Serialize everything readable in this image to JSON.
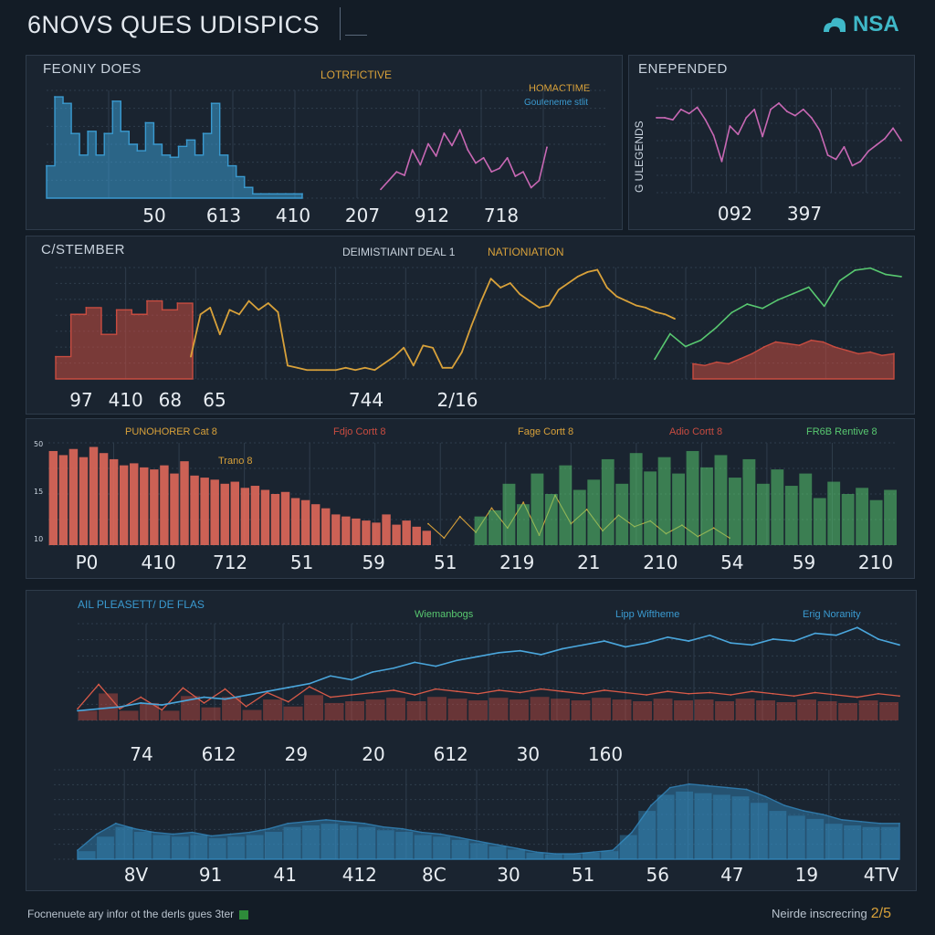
{
  "header": {
    "title": "6NOVS QUES UDISPICS",
    "brand": "NSA",
    "brand_icon": "cloud-icon",
    "accent": "#3fb8c8"
  },
  "footer": {
    "left_text": "Focnenuete ary infor ot the derls gues 3ter",
    "right_text": "Neirde inscrecring",
    "page": "2/5"
  },
  "colors": {
    "blue": "#3a9ad0",
    "pink": "#c868b4",
    "red": "#c84c40",
    "amber": "#d8a13a",
    "green": "#58c870",
    "grid": "#2f3d4c"
  },
  "panels": {
    "p1": {
      "title": "FEONIY DOES",
      "subtitle": "LOTRFICTIVE",
      "legend1": "HOMACTIME",
      "legend2": "Gouteneme stlit",
      "ticks": [
        "50",
        "613",
        "410",
        "207",
        "912",
        "718"
      ]
    },
    "p2": {
      "title": "ENEPENDED",
      "ylabel": "G ULEGENDS",
      "ticks": [
        "092",
        "397"
      ]
    },
    "p3": {
      "title": "C/STEMBER",
      "subtitle": "DEIMISTIAINT DEAL 1",
      "subtitle2": "NATIONIATION",
      "ticks": [
        "97",
        "410",
        "68",
        "65",
        "744",
        "2/16"
      ]
    },
    "p4": {
      "legend": [
        "PUNOHORER Cat 8",
        "Fdjo Cortt 8",
        "Fage Cortt 8",
        "Adio Cortt 8",
        "FR6B Rentive 8"
      ],
      "inner_label": "Trano 8",
      "yticks": [
        "50",
        "15",
        "10"
      ],
      "ticks": [
        "P0",
        "410",
        "712",
        "51",
        "59",
        "51",
        "219",
        "21",
        "210",
        "54",
        "59",
        "210"
      ]
    },
    "p5": {
      "title": "AIL PLEASETT/ DE FLAS",
      "legend": [
        "Wiemanbogs",
        "Lipp Wiftheme",
        "Erig Noranity"
      ],
      "ticks": [
        "74",
        "612",
        "29",
        "20",
        "612",
        "30",
        "160"
      ],
      "ticks_lower": [
        "8V",
        "91",
        "41",
        "412",
        "8C",
        "30",
        "51",
        "56",
        "47",
        "19",
        "4TV"
      ]
    }
  },
  "chart_data": [
    {
      "type": "area",
      "title": "FEONIY DOES",
      "series": [
        {
          "name": "HOMACTIME",
          "values": [
            30,
            94,
            88,
            60,
            40,
            62,
            40,
            60,
            90,
            62,
            50,
            44,
            70,
            50,
            40,
            38,
            48,
            54,
            40,
            60,
            88,
            40,
            30,
            20,
            10,
            4,
            4,
            4,
            4,
            4,
            4,
            4
          ]
        },
        {
          "name": "Gouteneme stlit",
          "values": [
            10,
            20,
            30,
            26,
            55,
            38,
            62,
            48,
            74,
            60,
            78,
            55,
            40,
            46,
            30,
            34,
            46,
            25,
            30,
            12,
            20,
            58
          ]
        }
      ]
    },
    {
      "type": "line",
      "title": "ENEPENDED",
      "series": [
        {
          "name": "",
          "values": [
            72,
            72,
            70,
            80,
            76,
            82,
            70,
            55,
            30,
            64,
            56,
            72,
            80,
            54,
            80,
            86,
            78,
            74,
            80,
            72,
            60,
            36,
            32,
            44,
            26,
            30,
            40,
            46,
            52,
            62,
            50
          ]
        }
      ]
    },
    {
      "type": "line",
      "title": "C/STEMBER",
      "series": [
        {
          "name": "",
          "values": [
            20,
            58,
            64,
            40,
            62,
            58,
            70,
            62,
            68,
            60,
            12,
            10,
            8,
            8,
            8,
            8,
            10,
            8,
            10,
            8,
            14,
            20,
            28,
            12,
            30,
            28,
            10,
            10,
            24,
            48,
            70,
            90,
            82,
            86,
            76,
            70,
            64,
            66,
            80,
            86,
            92,
            96,
            98,
            82,
            74,
            70,
            66,
            64,
            60,
            58,
            54
          ]
        },
        {
          "name": "",
          "values": [
            10,
            34,
            22,
            28,
            40,
            54,
            62,
            58,
            66,
            72,
            78,
            60,
            84,
            94,
            96,
            90,
            88
          ]
        },
        {
          "name": "",
          "values": [
            18,
            16,
            20,
            18,
            24,
            30,
            38,
            44,
            42,
            40,
            46,
            44,
            38,
            34,
            30,
            32,
            28,
            30
          ]
        }
      ]
    },
    {
      "type": "bar",
      "title": "",
      "series": [
        {
          "name": "PUNOHORER Cat 8",
          "values": [
            92,
            88,
            94,
            86,
            96,
            90,
            84,
            78,
            80,
            76,
            74,
            78,
            70,
            82,
            68,
            66,
            64,
            60,
            62,
            56,
            58,
            54,
            50,
            52,
            46,
            44,
            40,
            36,
            30,
            28,
            26,
            24,
            22,
            30,
            20,
            24,
            18,
            14
          ]
        },
        {
          "name": "Fdjo Cortt 8",
          "values": [
            30,
            10,
            40,
            18,
            52,
            24,
            60,
            14,
            70,
            30,
            50,
            20,
            42,
            26,
            34,
            16,
            28,
            12,
            24,
            10
          ]
        },
        {
          "name": "FR6B Rentive 8",
          "values": [
            28,
            34,
            60,
            40,
            70,
            50,
            78,
            54,
            64,
            84,
            60,
            90,
            72,
            86,
            70,
            92,
            76,
            88,
            66,
            84,
            60,
            74,
            58,
            70,
            46,
            62,
            50,
            56,
            44,
            54
          ]
        }
      ]
    },
    {
      "type": "line",
      "title": "AIL PLEASETT/ DE FLAS",
      "series": [
        {
          "name": "Lipp Wiftheme",
          "values": [
            10,
            12,
            14,
            18,
            16,
            20,
            24,
            22,
            26,
            30,
            34,
            38,
            46,
            42,
            50,
            54,
            60,
            56,
            62,
            66,
            70,
            72,
            68,
            74,
            78,
            82,
            76,
            80,
            86,
            82,
            88,
            80,
            78,
            84,
            82,
            90,
            88,
            96,
            84,
            78
          ]
        },
        {
          "name": "Wiemanbogs",
          "values": [
            20,
            62,
            20,
            40,
            18,
            56,
            30,
            54,
            24,
            48,
            32,
            58,
            40,
            44,
            48,
            52,
            44,
            54,
            50,
            46,
            52,
            48,
            54,
            50,
            46,
            52,
            48,
            44,
            50,
            46,
            48,
            44,
            50,
            46,
            42,
            48,
            44,
            40,
            46,
            42
          ]
        }
      ]
    },
    {
      "type": "area",
      "title": "",
      "series": [
        {
          "name": "Erig Noranity",
          "values": [
            10,
            28,
            40,
            34,
            30,
            28,
            30,
            26,
            28,
            30,
            34,
            40,
            42,
            44,
            42,
            40,
            36,
            34,
            30,
            28,
            24,
            20,
            16,
            12,
            8,
            6,
            6,
            8,
            10,
            30,
            60,
            80,
            84,
            82,
            80,
            78,
            70,
            60,
            54,
            50,
            44,
            42,
            40,
            40
          ]
        }
      ]
    }
  ]
}
